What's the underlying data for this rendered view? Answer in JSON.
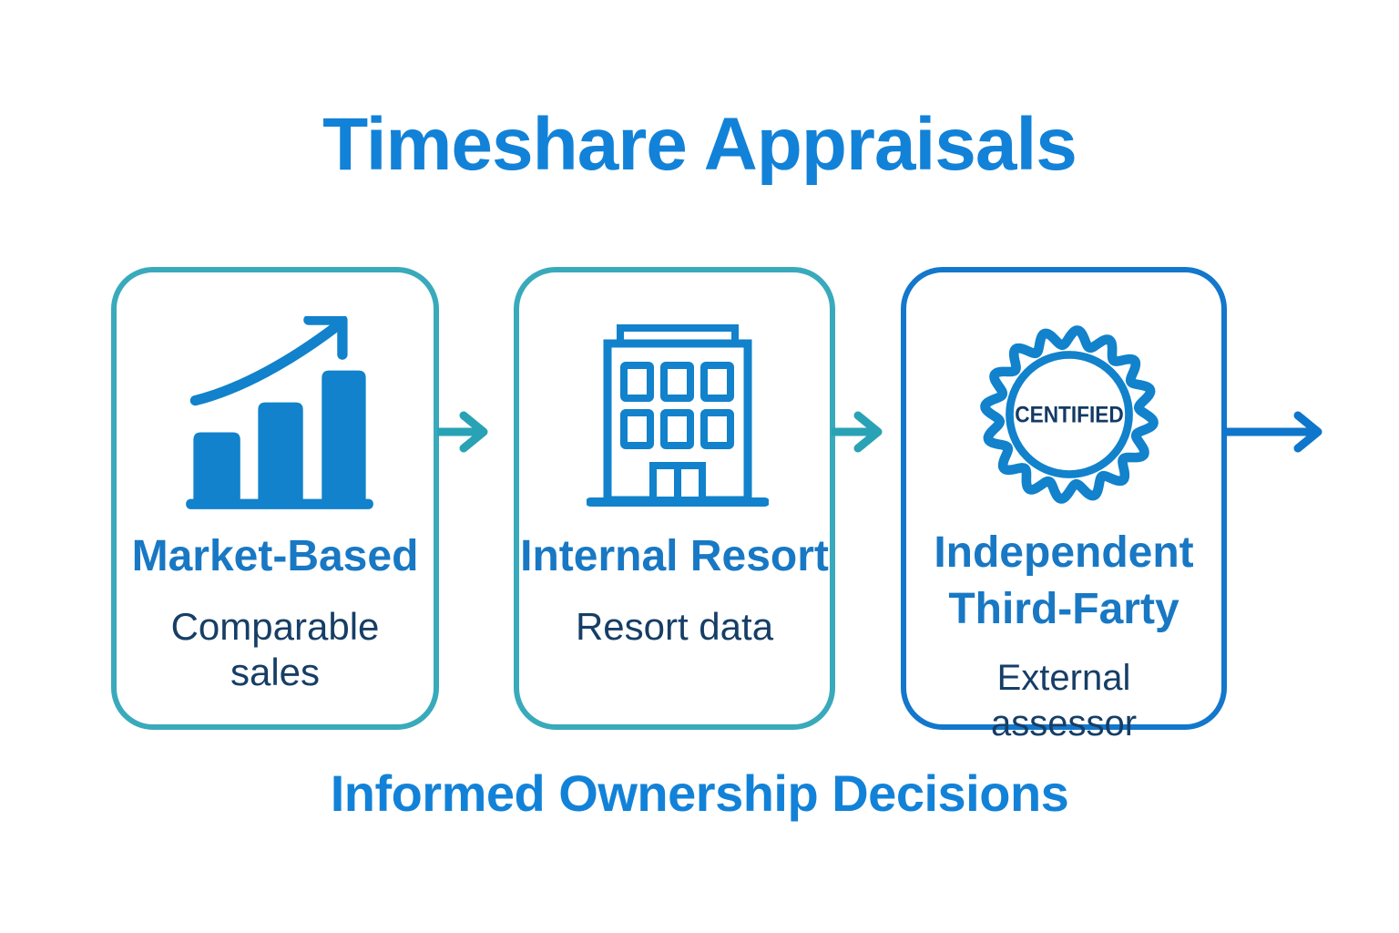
{
  "header": {
    "title": "Timeshare Appraisals"
  },
  "footer": {
    "text": "Informed Ownership Decisions"
  },
  "colors": {
    "title_blue": "#1282d8",
    "card_title_blue": "#1878c4",
    "subtitle_navy": "#163e66",
    "teal_card_border": "#39aabb",
    "blue_card_border": "#1377cc",
    "icon_blue": "#1182cb",
    "teal_arrow": "#29a2b5",
    "blue_arrow": "#0e76cb",
    "badge_text_navy": "#143a64"
  },
  "cards": [
    {
      "title": "Market-Based",
      "subtitle": "Comparable sales",
      "icon": "growth-bar-chart-icon"
    },
    {
      "title": "Internal Resort",
      "subtitle": "Resort data",
      "icon": "resort-building-icon"
    },
    {
      "title_lines": [
        "Independent",
        "Third-Farty"
      ],
      "subtitle": "External assessor",
      "icon": "certified-badge-icon",
      "badge_text": "CENTIFIED"
    }
  ]
}
